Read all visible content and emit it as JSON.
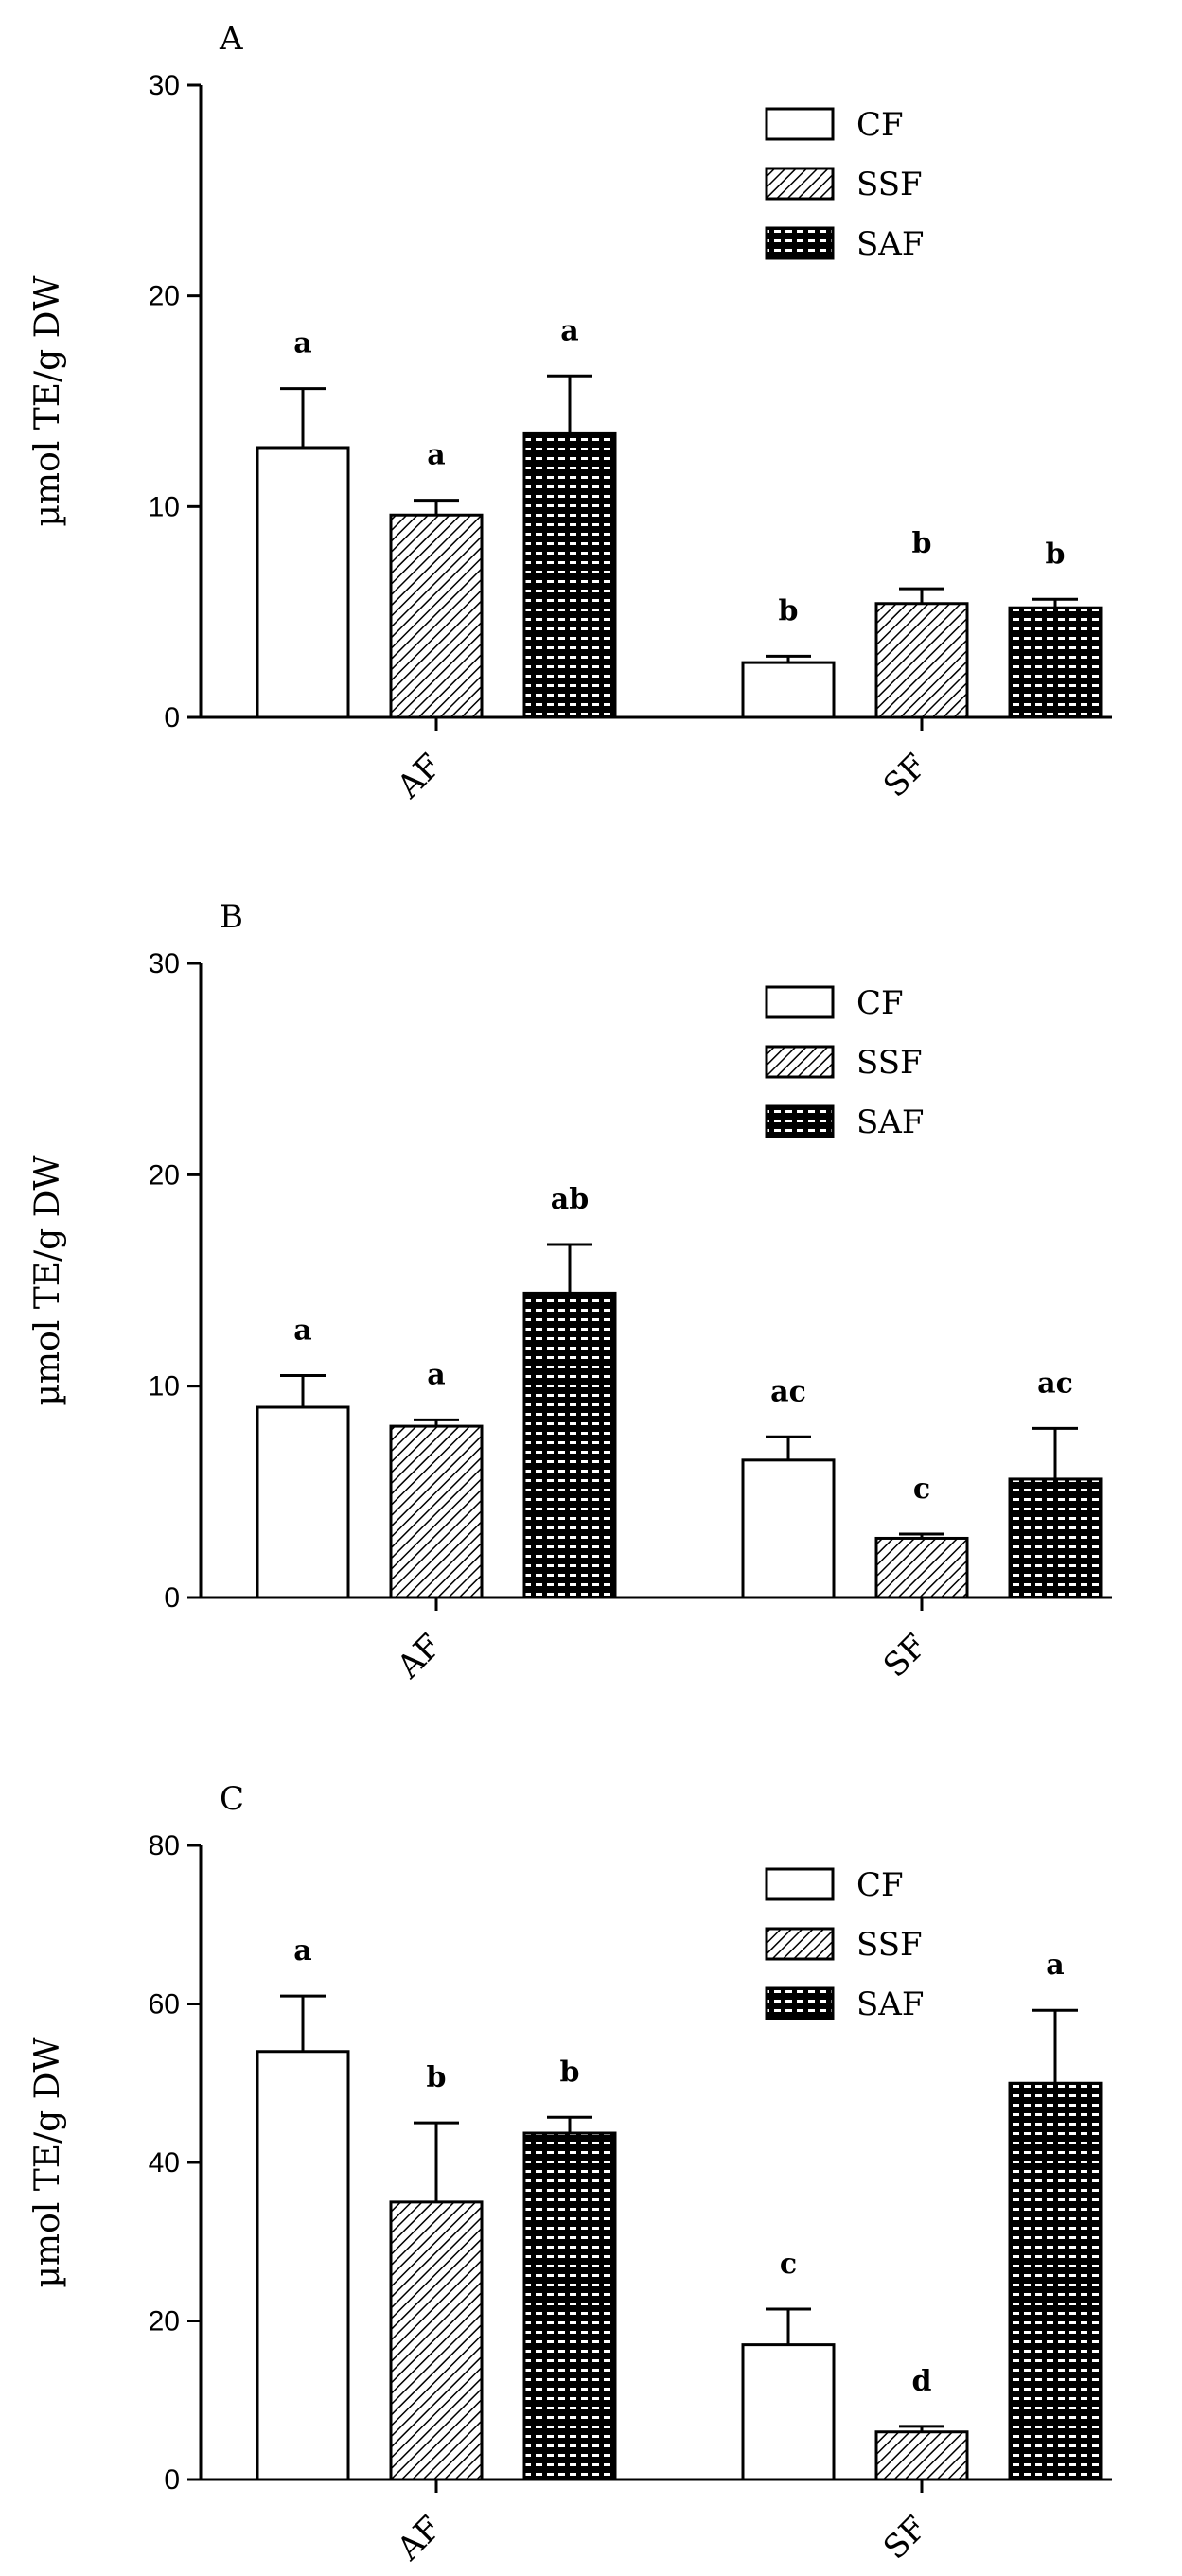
{
  "colors": {
    "ink": "#000000",
    "background": "#ffffff"
  },
  "chart_data": [
    {
      "type": "bar",
      "panel": "A",
      "ylabel": "µmol TE/g DW",
      "ylim": [
        0,
        30
      ],
      "yticks": [
        "0",
        "10",
        "20",
        "30"
      ],
      "categories": [
        "AF",
        "SF"
      ],
      "legend": [
        "CF",
        "SSF",
        "SAF"
      ],
      "legend_position": "top-right",
      "series": [
        {
          "name": "CF",
          "pattern": "white",
          "values": [
            12.8,
            2.6
          ],
          "errors": [
            2.8,
            0.3
          ],
          "labels": [
            "a",
            "b"
          ]
        },
        {
          "name": "SSF",
          "pattern": "hatch",
          "values": [
            9.6,
            5.4
          ],
          "errors": [
            0.7,
            0.7
          ],
          "labels": [
            "a",
            "b"
          ]
        },
        {
          "name": "SAF",
          "pattern": "dotted",
          "values": [
            13.5,
            5.2
          ],
          "errors": [
            2.7,
            0.4
          ],
          "labels": [
            "a",
            "b"
          ]
        }
      ]
    },
    {
      "type": "bar",
      "panel": "B",
      "ylabel": "µmol TE/g DW",
      "ylim": [
        0,
        30
      ],
      "yticks": [
        "0",
        "10",
        "20",
        "30"
      ],
      "categories": [
        "AF",
        "SF"
      ],
      "legend": [
        "CF",
        "SSF",
        "SAF"
      ],
      "legend_position": "top-right",
      "series": [
        {
          "name": "CF",
          "pattern": "white",
          "values": [
            9.0,
            6.5
          ],
          "errors": [
            1.5,
            1.1
          ],
          "labels": [
            "a",
            "ac"
          ]
        },
        {
          "name": "SSF",
          "pattern": "hatch",
          "values": [
            8.1,
            2.8
          ],
          "errors": [
            0.3,
            0.2
          ],
          "labels": [
            "a",
            "c"
          ]
        },
        {
          "name": "SAF",
          "pattern": "dotted",
          "values": [
            14.4,
            5.6
          ],
          "errors": [
            2.3,
            2.4
          ],
          "labels": [
            "ab",
            "ac"
          ]
        }
      ]
    },
    {
      "type": "bar",
      "panel": "C",
      "ylabel": "µmol TE/g DW",
      "ylim": [
        0,
        80
      ],
      "yticks": [
        "0",
        "20",
        "40",
        "60",
        "80"
      ],
      "categories": [
        "AF",
        "SF"
      ],
      "legend": [
        "CF",
        "SSF",
        "SAF"
      ],
      "legend_position": "top-right",
      "series": [
        {
          "name": "CF",
          "pattern": "white",
          "values": [
            54.0,
            17.0
          ],
          "errors": [
            7.0,
            4.5
          ],
          "labels": [
            "a",
            "c"
          ]
        },
        {
          "name": "SSF",
          "pattern": "hatch",
          "values": [
            35.0,
            6.0
          ],
          "errors": [
            10.0,
            0.7
          ],
          "labels": [
            "b",
            "d"
          ]
        },
        {
          "name": "SAF",
          "pattern": "dotted",
          "values": [
            43.7,
            50.0
          ],
          "errors": [
            2.0,
            9.2
          ],
          "labels": [
            "b",
            "a"
          ]
        }
      ]
    }
  ]
}
